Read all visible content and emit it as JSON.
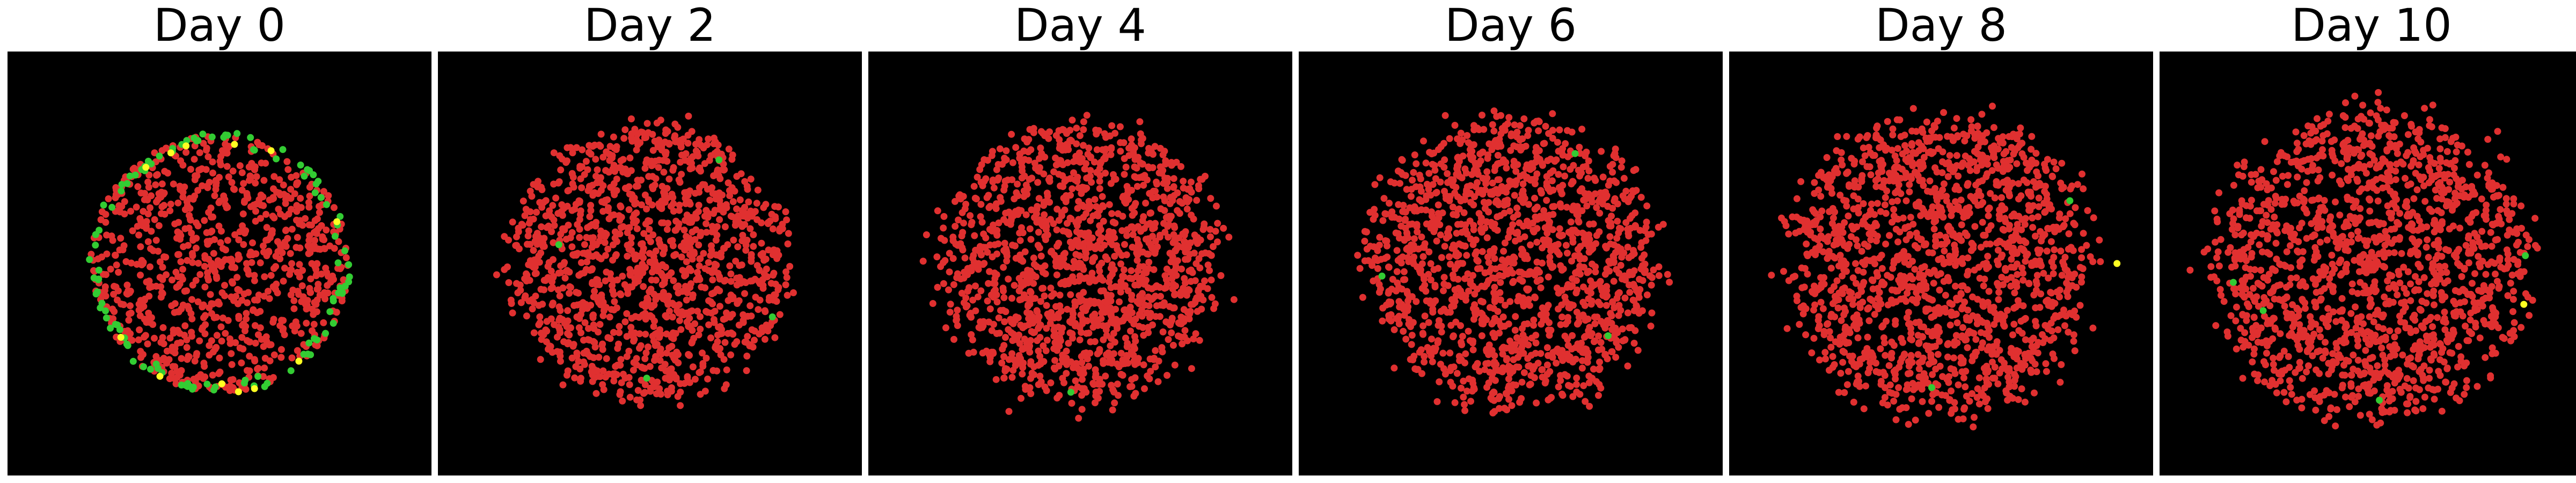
{
  "colors": {
    "background": "#000000",
    "cell_red": "#e03030",
    "cell_green": "#33cc33",
    "cell_yellow": "#ffff22"
  },
  "chart_data": [
    {
      "type": "scatter",
      "title": "Day 0",
      "xlim": [
        -1.35,
        1.35
      ],
      "ylim": [
        -1.35,
        1.35
      ],
      "grid": false,
      "seed": 11,
      "n_red": 900,
      "red_radius": 0.82,
      "red_spread": 0.0,
      "n_green": 110,
      "n_yellow": 12,
      "outlier_green": [],
      "outlier_yellow": []
    },
    {
      "type": "scatter",
      "title": "Day 2",
      "xlim": [
        -1.35,
        1.35
      ],
      "ylim": [
        -1.35,
        1.35
      ],
      "grid": false,
      "seed": 23,
      "n_red": 1300,
      "red_radius": 0.88,
      "red_spread": 0.04,
      "n_green": 0,
      "n_yellow": 0,
      "outlier_green": [
        [
          -0.58,
          0.12
        ],
        [
          0.78,
          -0.34
        ],
        [
          -0.02,
          -0.73
        ],
        [
          0.44,
          0.66
        ]
      ],
      "outlier_yellow": []
    },
    {
      "type": "scatter",
      "title": "Day 4",
      "xlim": [
        -1.35,
        1.35
      ],
      "ylim": [
        -1.35,
        1.35
      ],
      "grid": false,
      "seed": 37,
      "n_red": 1400,
      "red_radius": 0.88,
      "red_spread": 0.06,
      "n_green": 0,
      "n_yellow": 0,
      "outlier_green": [
        [
          -0.06,
          -0.82
        ]
      ],
      "outlier_yellow": []
    },
    {
      "type": "scatter",
      "title": "Day 6",
      "xlim": [
        -1.35,
        1.35
      ],
      "ylim": [
        -1.35,
        1.35
      ],
      "grid": false,
      "seed": 41,
      "n_red": 1450,
      "red_radius": 0.92,
      "red_spread": 0.06,
      "n_green": 0,
      "n_yellow": 0,
      "outlier_green": [
        [
          -0.82,
          -0.08
        ],
        [
          0.41,
          0.7
        ],
        [
          0.62,
          -0.46
        ]
      ],
      "outlier_yellow": []
    },
    {
      "type": "scatter",
      "title": "Day 8",
      "xlim": [
        -1.35,
        1.35
      ],
      "ylim": [
        -1.35,
        1.35
      ],
      "grid": false,
      "seed": 53,
      "n_red": 1500,
      "red_radius": 0.96,
      "red_spread": 0.07,
      "n_green": 0,
      "n_yellow": 0,
      "outlier_green": [
        [
          0.82,
          0.4
        ],
        [
          -0.06,
          -0.79
        ]
      ],
      "outlier_yellow": [
        [
          1.12,
          0.0
        ]
      ]
    },
    {
      "type": "scatter",
      "title": "Day 10",
      "xlim": [
        -1.35,
        1.35
      ],
      "ylim": [
        -1.35,
        1.35
      ],
      "grid": false,
      "seed": 67,
      "n_red": 1500,
      "red_radius": 0.98,
      "red_spread": 0.07,
      "n_green": 0,
      "n_yellow": 0,
      "outlier_green": [
        [
          -0.88,
          -0.12
        ],
        [
          -0.69,
          -0.3
        ],
        [
          0.98,
          0.05
        ],
        [
          0.05,
          -0.87
        ]
      ],
      "outlier_yellow": [
        [
          0.97,
          -0.26
        ]
      ]
    }
  ]
}
